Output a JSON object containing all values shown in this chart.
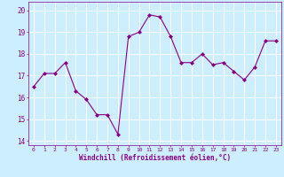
{
  "x": [
    0,
    1,
    2,
    3,
    4,
    5,
    6,
    7,
    8,
    9,
    10,
    11,
    12,
    13,
    14,
    15,
    16,
    17,
    18,
    19,
    20,
    21,
    22,
    23
  ],
  "y": [
    16.5,
    17.1,
    17.1,
    17.6,
    16.3,
    15.9,
    15.2,
    15.2,
    14.3,
    18.8,
    19.0,
    19.8,
    19.7,
    18.8,
    17.6,
    17.6,
    18.0,
    17.5,
    17.6,
    17.2,
    16.8,
    17.4,
    18.6,
    18.6
  ],
  "line_color": "#880088",
  "marker": "D",
  "marker_size": 2.0,
  "background_color": "#cceeff",
  "grid_color": "#ffffff",
  "xlabel": "Windchill (Refroidissement éolien,°C)",
  "xlabel_color": "#880088",
  "tick_color": "#880088",
  "ylim": [
    13.8,
    20.4
  ],
  "yticks": [
    14,
    15,
    16,
    17,
    18,
    19,
    20
  ],
  "xticks": [
    0,
    1,
    2,
    3,
    4,
    5,
    6,
    7,
    8,
    9,
    10,
    11,
    12,
    13,
    14,
    15,
    16,
    17,
    18,
    19,
    20,
    21,
    22,
    23
  ]
}
